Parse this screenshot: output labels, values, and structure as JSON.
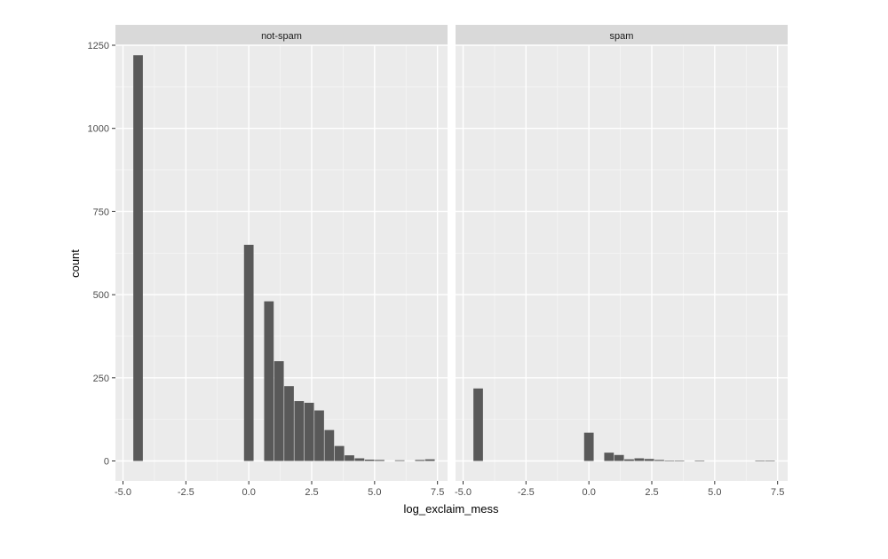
{
  "chart_data": {
    "type": "bar",
    "xlabel": "log_exclaim_mess",
    "ylabel": "count",
    "xlim": [
      -5.3,
      7.9
    ],
    "ylim": [
      -60,
      1250
    ],
    "xticks": [
      -5.0,
      -2.5,
      0.0,
      2.5,
      5.0,
      7.5
    ],
    "xtick_labels": [
      "-5.0",
      "-2.5",
      "0.0",
      "2.5",
      "5.0",
      "7.5"
    ],
    "yticks": [
      0,
      250,
      500,
      750,
      1000,
      1250
    ],
    "ytick_labels": [
      "0",
      "250",
      "500",
      "750",
      "1000",
      "1250"
    ],
    "grid": true,
    "bin_width": 0.38,
    "facets": [
      {
        "label": "not-spam",
        "bins": [
          {
            "x": -4.4,
            "count": 1220
          },
          {
            "x": 0.0,
            "count": 650
          },
          {
            "x": 0.8,
            "count": 480
          },
          {
            "x": 1.2,
            "count": 300
          },
          {
            "x": 1.6,
            "count": 225
          },
          {
            "x": 2.0,
            "count": 180
          },
          {
            "x": 2.4,
            "count": 175
          },
          {
            "x": 2.8,
            "count": 152
          },
          {
            "x": 3.2,
            "count": 93
          },
          {
            "x": 3.6,
            "count": 45
          },
          {
            "x": 4.0,
            "count": 17
          },
          {
            "x": 4.4,
            "count": 8
          },
          {
            "x": 4.8,
            "count": 4
          },
          {
            "x": 5.2,
            "count": 3
          },
          {
            "x": 6.0,
            "count": 2
          },
          {
            "x": 6.8,
            "count": 3
          },
          {
            "x": 7.2,
            "count": 5
          }
        ]
      },
      {
        "label": "spam",
        "bins": [
          {
            "x": -4.4,
            "count": 218
          },
          {
            "x": 0.0,
            "count": 85
          },
          {
            "x": 0.8,
            "count": 25
          },
          {
            "x": 1.2,
            "count": 18
          },
          {
            "x": 1.6,
            "count": 5
          },
          {
            "x": 2.0,
            "count": 8
          },
          {
            "x": 2.4,
            "count": 6
          },
          {
            "x": 2.8,
            "count": 3
          },
          {
            "x": 3.2,
            "count": 1
          },
          {
            "x": 3.6,
            "count": 1
          },
          {
            "x": 4.4,
            "count": 1
          },
          {
            "x": 6.8,
            "count": 1
          },
          {
            "x": 7.2,
            "count": 1
          }
        ]
      }
    ]
  },
  "colors": {
    "panel_background": "#ebebeb",
    "strip_background": "#d9d9d9",
    "grid_major": "#ffffff",
    "bar_fill": "#595959",
    "tick_text": "#4d4d4d",
    "axis_title": "#000000",
    "strip_text": "#1a1a1a"
  }
}
